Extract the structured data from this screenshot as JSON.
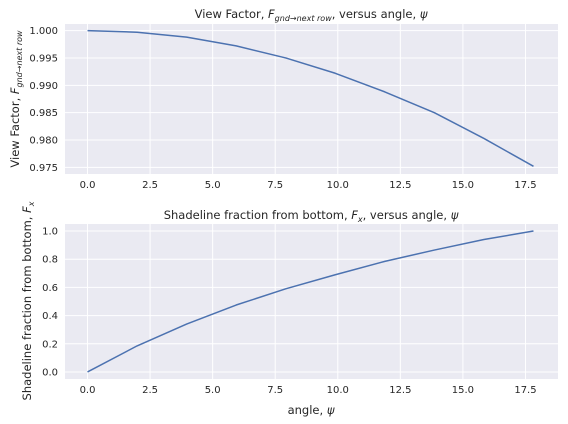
{
  "figure": {
    "background": "#ffffff",
    "axes_facecolor": "#eaeaf2",
    "grid_color": "#ffffff",
    "line_color": "#4c72b0"
  },
  "chart_data": [
    {
      "type": "line",
      "title_parts": [
        "View Factor, ",
        "F",
        "gnd→next row",
        ", versus angle, ",
        "ψ"
      ],
      "ylabel_parts": [
        "View Factor, ",
        "F",
        "gnd→next row"
      ],
      "xlabel": "",
      "grid": true,
      "xlim": [
        -0.9,
        18.8
      ],
      "ylim": [
        0.9738,
        1.0012
      ],
      "xticks": [
        0.0,
        2.5,
        5.0,
        7.5,
        10.0,
        12.5,
        15.0,
        17.5
      ],
      "xtick_labels": [
        "0.0",
        "2.5",
        "5.0",
        "7.5",
        "10.0",
        "12.5",
        "15.0",
        "17.5"
      ],
      "yticks": [
        0.975,
        0.98,
        0.985,
        0.99,
        0.995,
        1.0
      ],
      "ytick_labels": [
        "0.975",
        "0.980",
        "0.985",
        "0.990",
        "0.995",
        "1.000"
      ],
      "series": [
        {
          "x": [
            0.0,
            1.98,
            3.96,
            5.94,
            7.92,
            9.9,
            11.88,
            13.86,
            15.84,
            17.82
          ],
          "y": [
            1.0,
            0.9997,
            0.9988,
            0.9972,
            0.995,
            0.9922,
            0.9888,
            0.985,
            0.9803,
            0.9752
          ]
        }
      ]
    },
    {
      "type": "line",
      "title_parts": [
        "Shadeline fraction from bottom, ",
        "F",
        "x",
        ", versus angle, ",
        "ψ"
      ],
      "ylabel_parts": [
        "Shadeline fraction from bottom, ",
        "F",
        "x"
      ],
      "xlabel_parts": [
        "angle, ",
        "ψ"
      ],
      "grid": true,
      "xlim": [
        -0.9,
        18.8
      ],
      "ylim": [
        -0.05,
        1.05
      ],
      "xticks": [
        0.0,
        2.5,
        5.0,
        7.5,
        10.0,
        12.5,
        15.0,
        17.5
      ],
      "xtick_labels": [
        "0.0",
        "2.5",
        "5.0",
        "7.5",
        "10.0",
        "12.5",
        "15.0",
        "17.5"
      ],
      "yticks": [
        0.0,
        0.2,
        0.4,
        0.6,
        0.8,
        1.0
      ],
      "ytick_labels": [
        "0.0",
        "0.2",
        "0.4",
        "0.6",
        "0.8",
        "1.0"
      ],
      "series": [
        {
          "x": [
            0.0,
            1.98,
            3.96,
            5.94,
            7.92,
            9.9,
            11.88,
            13.86,
            15.84,
            17.82
          ],
          "y": [
            0.0,
            0.185,
            0.34,
            0.475,
            0.59,
            0.69,
            0.785,
            0.865,
            0.94,
            1.0
          ]
        }
      ]
    }
  ]
}
